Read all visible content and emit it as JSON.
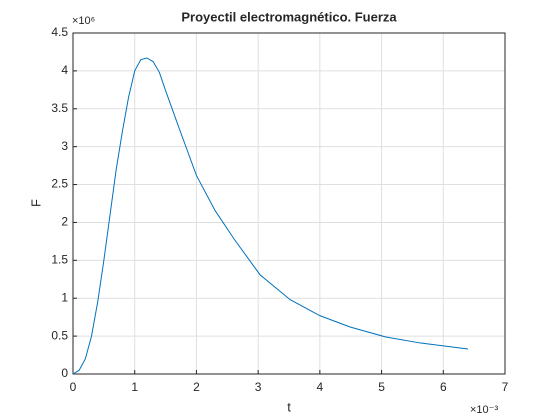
{
  "chart_data": {
    "type": "line",
    "title": "Proyectil electromagnético. Fuerza",
    "x_label": "t",
    "y_label": "F",
    "x_exponent": "×10⁻³",
    "y_exponent": "×10⁶",
    "x": [
      0,
      0.1,
      0.2,
      0.3,
      0.4,
      0.5,
      0.6,
      0.7,
      0.8,
      0.9,
      1.0,
      1.1,
      1.2,
      1.3,
      1.4,
      1.5,
      1.73,
      2.0,
      2.3,
      2.62,
      3.03,
      3.52,
      4.0,
      4.49,
      5.06,
      5.62,
      6.4
    ],
    "series": [
      {
        "name": "F",
        "color": "#0072bd",
        "values": [
          0,
          0.05,
          0.2,
          0.5,
          0.95,
          1.5,
          2.1,
          2.7,
          3.2,
          3.65,
          4.0,
          4.15,
          4.17,
          4.12,
          3.98,
          3.74,
          3.22,
          2.62,
          2.16,
          1.77,
          1.31,
          0.98,
          0.77,
          0.62,
          0.49,
          0.41,
          0.33
        ]
      }
    ],
    "xlim": [
      0,
      7
    ],
    "xticks": [
      0,
      1,
      2,
      3,
      4,
      5,
      6,
      7
    ],
    "ylim": [
      0,
      4.5
    ],
    "yticks": [
      0,
      0.5,
      1,
      1.5,
      2,
      2.5,
      3,
      3.5,
      4,
      4.5
    ],
    "grid": true
  }
}
